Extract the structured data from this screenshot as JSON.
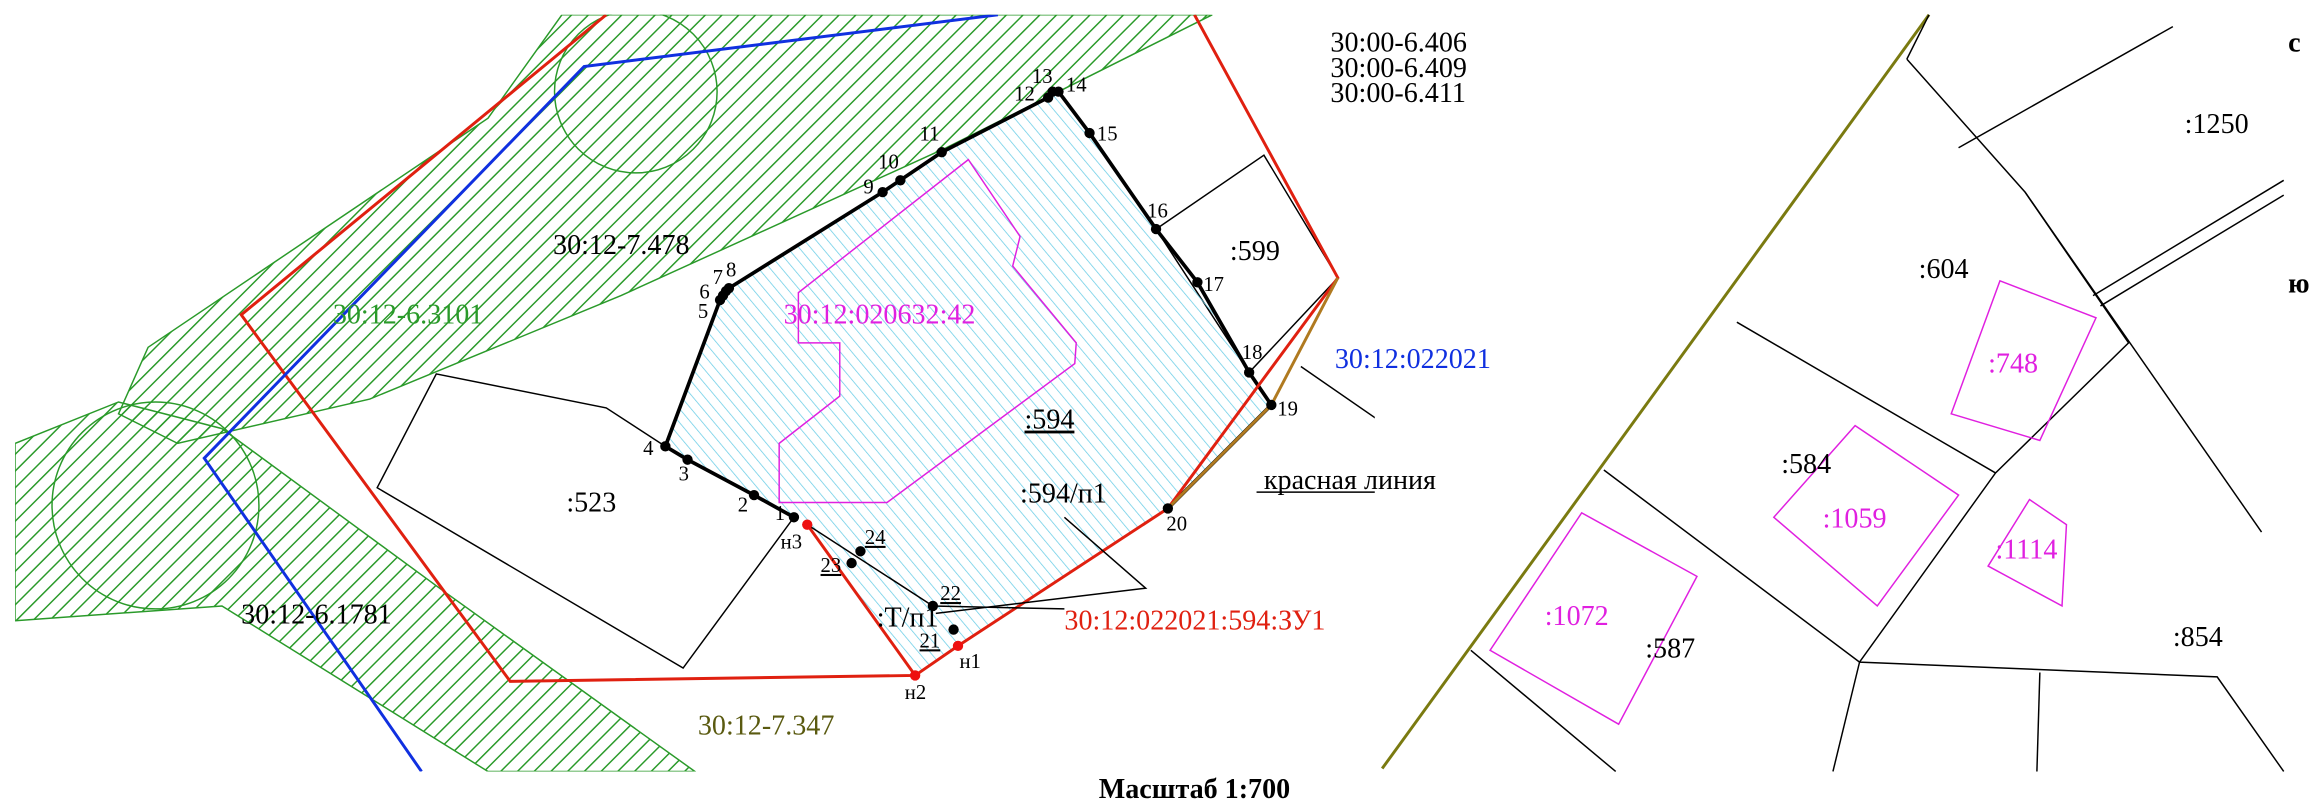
{
  "left_map": {
    "labels": [
      "30:00-6.406",
      "30:00-6.409",
      "30:00-6.411",
      "30:12-7.478",
      "30:12-6.3101",
      "30:12:020632:42",
      ":594",
      ":594/п1",
      ":599",
      ":523",
      "30:12-6.1781",
      "30:12-7.347",
      "30:12:022021",
      "красная линия",
      "30:12:022021:594:ЗУ1",
      ":Т/п1"
    ],
    "points": [
      "1",
      "2",
      "3",
      "4",
      "5",
      "6",
      "7",
      "8",
      "9",
      "10",
      "11",
      "12",
      "13",
      "14",
      "15",
      "16",
      "17",
      "18",
      "19",
      "20",
      "21",
      "22",
      "23",
      "24",
      "н1",
      "н2",
      "н3"
    ]
  },
  "right_map": {
    "labels": [
      ":1250",
      ":604",
      ":584",
      ":748",
      ":1059",
      ":1114",
      ":1072",
      ":587",
      ":854",
      "с",
      "ю"
    ]
  },
  "scale": "Масштаб 1:700"
}
